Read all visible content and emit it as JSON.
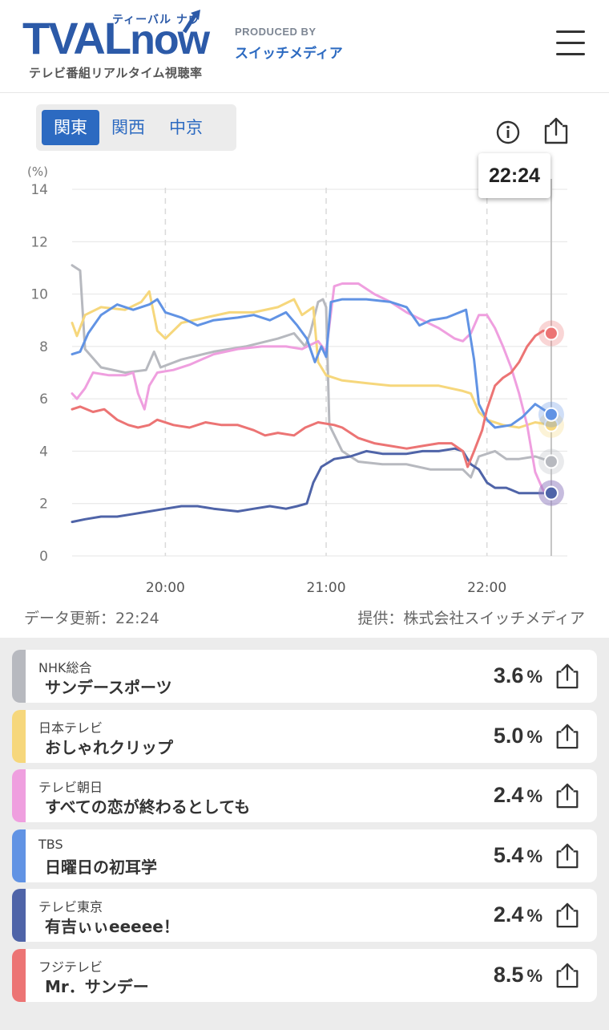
{
  "header": {
    "logo_main": "TVAL",
    "logo_now": "now",
    "logo_kana": "ティーバル ナウ",
    "logo_sub": "テレビ番組リアルタイム視聴率",
    "produced_by": "PRODUCED BY",
    "producer": "スイッチメディア"
  },
  "tabs": [
    {
      "label": "関東",
      "active": true
    },
    {
      "label": "関西",
      "active": false
    },
    {
      "label": "中京",
      "active": false
    }
  ],
  "tooltip_time": "22:24",
  "meta": {
    "updated": "データ更新：22:24",
    "provider": "提供：株式会社スイッチメディア"
  },
  "colors": {
    "nhk": "#b7b9bf",
    "ntv": "#f6d77c",
    "asahi": "#ef9fdf",
    "tbs": "#6193e4",
    "tx": "#4f64a8",
    "fuji": "#ec7474"
  },
  "chart_data": {
    "type": "line",
    "ylabel": "(%)",
    "ylim": [
      0,
      14
    ],
    "yticks": [
      "0",
      "2",
      "4",
      "6",
      "8",
      "10",
      "12",
      "14"
    ],
    "xticks": [
      "20:00",
      "21:00",
      "22:00"
    ],
    "xlim_minutes": [
      19.42,
      22.5
    ],
    "cursor": 22.4,
    "series": [
      {
        "key": "nhk",
        "name": "NHK総合",
        "points": [
          [
            19.42,
            11.1
          ],
          [
            19.47,
            10.9
          ],
          [
            19.5,
            7.9
          ],
          [
            19.6,
            7.2
          ],
          [
            19.75,
            7.0
          ],
          [
            19.88,
            7.1
          ],
          [
            19.93,
            7.8
          ],
          [
            19.97,
            7.2
          ],
          [
            20.1,
            7.5
          ],
          [
            20.3,
            7.8
          ],
          [
            20.5,
            8.0
          ],
          [
            20.7,
            8.3
          ],
          [
            20.8,
            8.5
          ],
          [
            20.87,
            8.0
          ],
          [
            20.9,
            8.5
          ],
          [
            20.95,
            9.7
          ],
          [
            20.98,
            9.8
          ],
          [
            21.0,
            9.5
          ],
          [
            21.02,
            5.0
          ],
          [
            21.1,
            4.0
          ],
          [
            21.2,
            3.6
          ],
          [
            21.35,
            3.5
          ],
          [
            21.5,
            3.5
          ],
          [
            21.65,
            3.3
          ],
          [
            21.75,
            3.3
          ],
          [
            21.85,
            3.3
          ],
          [
            21.9,
            3.0
          ],
          [
            21.95,
            3.8
          ],
          [
            22.05,
            4.0
          ],
          [
            22.12,
            3.7
          ],
          [
            22.2,
            3.7
          ],
          [
            22.3,
            3.8
          ],
          [
            22.4,
            3.6
          ]
        ]
      },
      {
        "key": "ntv",
        "name": "日本テレビ",
        "points": [
          [
            19.42,
            8.9
          ],
          [
            19.45,
            8.4
          ],
          [
            19.5,
            9.2
          ],
          [
            19.6,
            9.5
          ],
          [
            19.75,
            9.4
          ],
          [
            19.85,
            9.7
          ],
          [
            19.9,
            10.1
          ],
          [
            19.95,
            8.6
          ],
          [
            20.0,
            8.3
          ],
          [
            20.1,
            8.9
          ],
          [
            20.25,
            9.1
          ],
          [
            20.4,
            9.3
          ],
          [
            20.55,
            9.3
          ],
          [
            20.7,
            9.5
          ],
          [
            20.8,
            9.8
          ],
          [
            20.85,
            9.2
          ],
          [
            20.92,
            9.5
          ],
          [
            20.95,
            7.4
          ],
          [
            21.0,
            6.9
          ],
          [
            21.1,
            6.7
          ],
          [
            21.25,
            6.6
          ],
          [
            21.4,
            6.5
          ],
          [
            21.55,
            6.5
          ],
          [
            21.7,
            6.5
          ],
          [
            21.85,
            6.3
          ],
          [
            21.9,
            6.2
          ],
          [
            21.95,
            5.5
          ],
          [
            22.0,
            5.2
          ],
          [
            22.1,
            5.0
          ],
          [
            22.2,
            4.9
          ],
          [
            22.3,
            5.1
          ],
          [
            22.4,
            5.0
          ]
        ]
      },
      {
        "key": "asahi",
        "name": "テレビ朝日",
        "points": [
          [
            19.42,
            6.2
          ],
          [
            19.45,
            6.0
          ],
          [
            19.5,
            6.4
          ],
          [
            19.55,
            7.0
          ],
          [
            19.65,
            6.9
          ],
          [
            19.75,
            6.9
          ],
          [
            19.8,
            7.0
          ],
          [
            19.83,
            6.2
          ],
          [
            19.87,
            5.6
          ],
          [
            19.9,
            6.5
          ],
          [
            19.95,
            7.0
          ],
          [
            20.05,
            7.1
          ],
          [
            20.15,
            7.3
          ],
          [
            20.3,
            7.7
          ],
          [
            20.45,
            7.9
          ],
          [
            20.6,
            8.0
          ],
          [
            20.75,
            8.0
          ],
          [
            20.85,
            7.9
          ],
          [
            20.95,
            8.2
          ],
          [
            21.0,
            7.8
          ],
          [
            21.05,
            10.3
          ],
          [
            21.1,
            10.4
          ],
          [
            21.2,
            10.4
          ],
          [
            21.3,
            10.0
          ],
          [
            21.4,
            9.7
          ],
          [
            21.5,
            9.3
          ],
          [
            21.6,
            9.0
          ],
          [
            21.7,
            8.7
          ],
          [
            21.8,
            8.3
          ],
          [
            21.85,
            8.2
          ],
          [
            21.9,
            8.5
          ],
          [
            21.95,
            9.2
          ],
          [
            22.0,
            9.2
          ],
          [
            22.05,
            8.7
          ],
          [
            22.1,
            8.0
          ],
          [
            22.15,
            7.2
          ],
          [
            22.2,
            6.2
          ],
          [
            22.25,
            5.0
          ],
          [
            22.3,
            3.2
          ],
          [
            22.35,
            2.5
          ],
          [
            22.4,
            2.4
          ]
        ]
      },
      {
        "key": "tbs",
        "name": "TBS",
        "points": [
          [
            19.42,
            7.7
          ],
          [
            19.47,
            7.8
          ],
          [
            19.52,
            8.5
          ],
          [
            19.6,
            9.2
          ],
          [
            19.7,
            9.6
          ],
          [
            19.8,
            9.4
          ],
          [
            19.9,
            9.6
          ],
          [
            19.95,
            9.8
          ],
          [
            20.0,
            9.3
          ],
          [
            20.1,
            9.1
          ],
          [
            20.2,
            8.8
          ],
          [
            20.3,
            9.0
          ],
          [
            20.45,
            9.1
          ],
          [
            20.55,
            9.2
          ],
          [
            20.65,
            9.0
          ],
          [
            20.75,
            9.3
          ],
          [
            20.82,
            8.8
          ],
          [
            20.88,
            8.3
          ],
          [
            20.93,
            7.4
          ],
          [
            20.97,
            8.0
          ],
          [
            21.0,
            7.6
          ],
          [
            21.03,
            9.7
          ],
          [
            21.1,
            9.8
          ],
          [
            21.25,
            9.8
          ],
          [
            21.4,
            9.7
          ],
          [
            21.5,
            9.5
          ],
          [
            21.58,
            8.8
          ],
          [
            21.65,
            9.0
          ],
          [
            21.75,
            9.1
          ],
          [
            21.83,
            9.3
          ],
          [
            21.87,
            9.4
          ],
          [
            21.92,
            7.5
          ],
          [
            21.95,
            5.8
          ],
          [
            22.0,
            5.2
          ],
          [
            22.05,
            4.9
          ],
          [
            22.15,
            5.0
          ],
          [
            22.22,
            5.3
          ],
          [
            22.3,
            5.8
          ],
          [
            22.35,
            5.6
          ],
          [
            22.4,
            5.4
          ]
        ]
      },
      {
        "key": "tx",
        "name": "テレビ東京",
        "points": [
          [
            19.42,
            1.3
          ],
          [
            19.5,
            1.4
          ],
          [
            19.6,
            1.5
          ],
          [
            19.7,
            1.5
          ],
          [
            19.8,
            1.6
          ],
          [
            19.9,
            1.7
          ],
          [
            20.0,
            1.8
          ],
          [
            20.1,
            1.9
          ],
          [
            20.2,
            1.9
          ],
          [
            20.3,
            1.8
          ],
          [
            20.45,
            1.7
          ],
          [
            20.55,
            1.8
          ],
          [
            20.65,
            1.9
          ],
          [
            20.75,
            1.8
          ],
          [
            20.82,
            1.9
          ],
          [
            20.88,
            2.0
          ],
          [
            20.92,
            2.8
          ],
          [
            20.97,
            3.4
          ],
          [
            21.05,
            3.7
          ],
          [
            21.15,
            3.8
          ],
          [
            21.25,
            4.0
          ],
          [
            21.35,
            3.9
          ],
          [
            21.5,
            3.9
          ],
          [
            21.6,
            4.0
          ],
          [
            21.7,
            4.0
          ],
          [
            21.8,
            4.1
          ],
          [
            21.85,
            4.0
          ],
          [
            21.9,
            3.5
          ],
          [
            21.95,
            3.3
          ],
          [
            22.0,
            2.8
          ],
          [
            22.05,
            2.6
          ],
          [
            22.12,
            2.6
          ],
          [
            22.2,
            2.4
          ],
          [
            22.3,
            2.4
          ],
          [
            22.4,
            2.4
          ]
        ]
      },
      {
        "key": "fuji",
        "name": "フジテレビ",
        "points": [
          [
            19.42,
            5.6
          ],
          [
            19.47,
            5.7
          ],
          [
            19.55,
            5.5
          ],
          [
            19.62,
            5.6
          ],
          [
            19.7,
            5.2
          ],
          [
            19.77,
            5.0
          ],
          [
            19.83,
            4.9
          ],
          [
            19.9,
            5.0
          ],
          [
            19.95,
            5.2
          ],
          [
            20.05,
            5.0
          ],
          [
            20.15,
            4.9
          ],
          [
            20.25,
            5.1
          ],
          [
            20.35,
            5.0
          ],
          [
            20.45,
            5.0
          ],
          [
            20.55,
            4.8
          ],
          [
            20.62,
            4.6
          ],
          [
            20.7,
            4.7
          ],
          [
            20.8,
            4.6
          ],
          [
            20.87,
            4.9
          ],
          [
            20.95,
            5.1
          ],
          [
            21.05,
            5.0
          ],
          [
            21.1,
            4.9
          ],
          [
            21.2,
            4.5
          ],
          [
            21.3,
            4.3
          ],
          [
            21.4,
            4.2
          ],
          [
            21.5,
            4.1
          ],
          [
            21.6,
            4.2
          ],
          [
            21.7,
            4.3
          ],
          [
            21.78,
            4.3
          ],
          [
            21.85,
            4.0
          ],
          [
            21.88,
            3.4
          ],
          [
            21.92,
            4.0
          ],
          [
            21.97,
            4.8
          ],
          [
            22.0,
            5.6
          ],
          [
            22.05,
            6.5
          ],
          [
            22.1,
            6.8
          ],
          [
            22.15,
            7.0
          ],
          [
            22.2,
            7.4
          ],
          [
            22.25,
            8.0
          ],
          [
            22.3,
            8.4
          ],
          [
            22.35,
            8.6
          ],
          [
            22.4,
            8.5
          ]
        ]
      }
    ]
  },
  "channels": [
    {
      "key": "nhk",
      "station": "NHK総合",
      "program": "サンデースポーツ",
      "value": "3.6",
      "unit": "%"
    },
    {
      "key": "ntv",
      "station": "日本テレビ",
      "program": "おしゃれクリップ",
      "value": "5.0",
      "unit": "%"
    },
    {
      "key": "asahi",
      "station": "テレビ朝日",
      "program": "すべての恋が終わるとしても",
      "value": "2.4",
      "unit": "%"
    },
    {
      "key": "tbs",
      "station": "TBS",
      "program": "日曜日の初耳学",
      "value": "5.4",
      "unit": "%"
    },
    {
      "key": "tx",
      "station": "テレビ東京",
      "program": "有吉ぃぃeeeee！",
      "value": "2.4",
      "unit": "%"
    },
    {
      "key": "fuji",
      "station": "フジテレビ",
      "program": "Mr．サンデー",
      "value": "8.5",
      "unit": "%"
    }
  ]
}
